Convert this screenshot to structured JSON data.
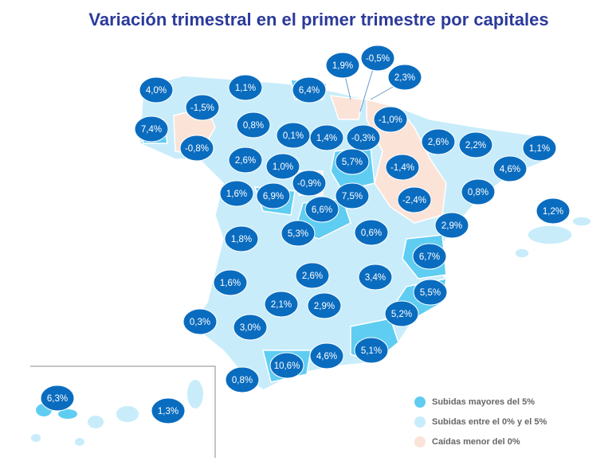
{
  "title": "Variación trimestral en el primer trimestre por capitales",
  "labels": [
    "4,0%",
    "1,1%",
    "6,4%",
    "1,9%",
    "-0,5%",
    "2,3%",
    "-1,5%",
    "0,8%",
    "7,4%",
    "-0,8%",
    "0,1%",
    "1,4%",
    "-0,3%",
    "-1,0%",
    "2,6%",
    "2,2%",
    "1,1%",
    "2,6%",
    "1,0%",
    "5,7%",
    "-1,4%",
    "4,6%",
    "-0,9%",
    "1,6%",
    "6,9%",
    "7,5%",
    "-2,4%",
    "0,8%",
    "6,6%",
    "1,2%",
    "2,9%",
    "5,3%",
    "0,6%",
    "1,8%",
    "6,7%",
    "2,6%",
    "3,4%",
    "1,6%",
    "5,5%",
    "2,1%",
    "2,9%",
    "0,3%",
    "5,2%",
    "3,0%",
    "5,1%",
    "4,6%",
    "10,6%",
    "0,8%",
    "6,3%",
    "1,3%"
  ],
  "legend": [
    "Subidas mayores del 5%",
    "Subidas entre el 0% y el 5%",
    "Caídas menor del 0%"
  ]
}
